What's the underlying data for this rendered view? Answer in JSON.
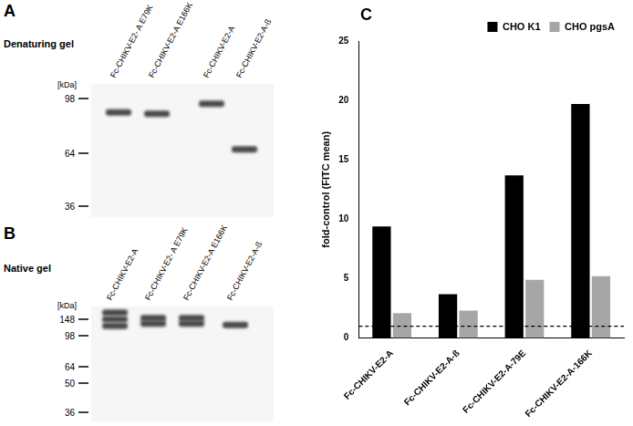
{
  "figure_panels": [
    {
      "label": "A",
      "title": "Denaturing gel",
      "unit": "[kDa]",
      "markers": [
        98,
        64,
        36
      ],
      "lanes": [
        {
          "name": "Fc-CHIKV-E2- A E79K",
          "bands_kda": [
            88
          ]
        },
        {
          "name": "Fc-CHIKV-E2-A E166K",
          "bands_kda": [
            87
          ]
        },
        {
          "name": "Fc-CHIKV-E2-A",
          "bands_kda": [
            94
          ]
        },
        {
          "name": "Fc-CHIKV-E2-A-ß",
          "bands_kda": [
            66
          ]
        }
      ]
    },
    {
      "label": "B",
      "title": "Native gel",
      "unit": "[kDa]",
      "markers": [
        148,
        98,
        64,
        50,
        36
      ],
      "lanes": [
        {
          "name": "Fc-CHIKV-E2-A",
          "bands_kda": [
            175,
            148,
            125
          ]
        },
        {
          "name": "Fc-CHIKV-E2- A E79K",
          "bands_kda": [
            152,
            133
          ]
        },
        {
          "name": "Fc-CHIKV-E2-A E166K",
          "bands_kda": [
            152,
            133
          ]
        },
        {
          "name": "Fc-CHIKV-E2-A-ß",
          "bands_kda": [
            128
          ]
        }
      ]
    }
  ],
  "chart_panel_label": "C",
  "chart_data": {
    "type": "bar",
    "categories": [
      "Fc-CHIKV-E2-A",
      "Fc-CHIKV-E2-A-ß",
      "Fc-CHIKV-E2-A-79E",
      "Fc-CHIKV-E2-A-166K"
    ],
    "series": [
      {
        "name": "CHO K1",
        "color": "#000000",
        "values": [
          9.4,
          3.7,
          13.7,
          19.7
        ]
      },
      {
        "name": "CHO pgsA",
        "color": "#a6a6a6",
        "values": [
          2.1,
          2.3,
          4.9,
          5.2
        ]
      }
    ],
    "ylabel": "fold-control (FITC mean)",
    "ylim": [
      0,
      25
    ],
    "yticks": [
      0,
      5,
      10,
      15,
      20,
      25
    ],
    "grid": false,
    "legend": "upper right",
    "reference_line": {
      "value": 1,
      "line_style": "dashed"
    }
  }
}
